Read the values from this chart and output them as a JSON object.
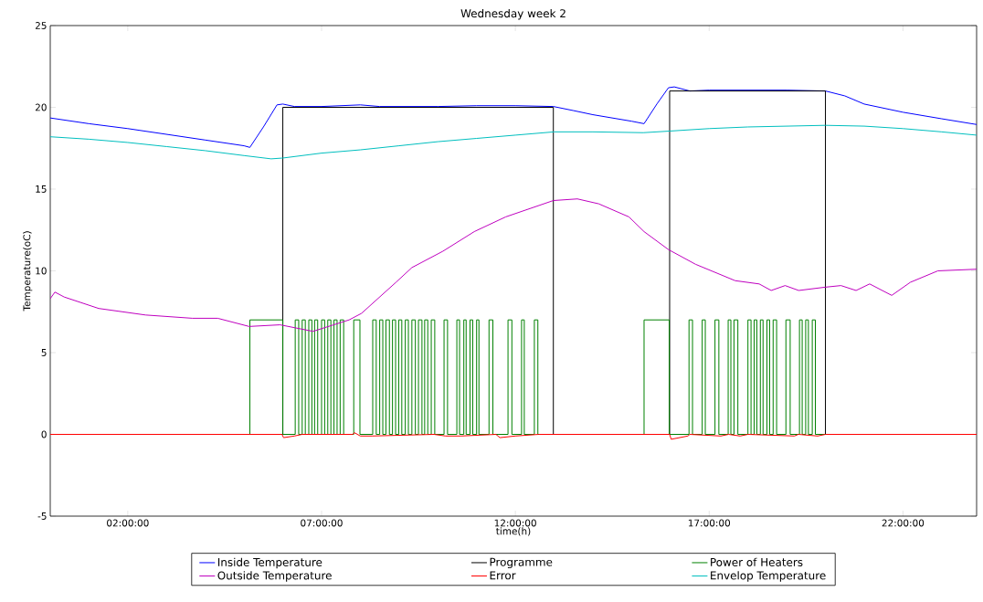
{
  "chart_data": {
    "type": "line",
    "title": "Wednesday week 2",
    "xlabel": "time(h)",
    "ylabel": "Temperature(oC)",
    "xlim": [
      0,
      23.9
    ],
    "ylim": [
      -5,
      25
    ],
    "xticks": [
      {
        "value": 2,
        "label": "02:00:00"
      },
      {
        "value": 7,
        "label": "07:00:00"
      },
      {
        "value": 12,
        "label": "12:00:00"
      },
      {
        "value": 17,
        "label": "17:00:00"
      },
      {
        "value": 22,
        "label": "22:00:00"
      }
    ],
    "yticks": [
      -5,
      0,
      5,
      10,
      15,
      20,
      25
    ],
    "grid": false,
    "legend": "bottom",
    "series": [
      {
        "name": "Inside Temperature",
        "color": "#0000ff",
        "x": [
          0,
          1,
          2,
          3,
          4,
          5,
          5.15,
          5.5,
          5.85,
          6.0,
          6.3,
          7,
          8,
          8.5,
          10,
          11,
          12,
          12.98,
          13.5,
          14,
          15,
          15.32,
          15.65,
          15.95,
          16.1,
          16.5,
          17,
          18,
          19,
          20,
          20.5,
          21,
          22,
          23,
          23.9
        ],
        "values": [
          19.35,
          19.0,
          18.7,
          18.35,
          18.0,
          17.65,
          17.55,
          18.8,
          20.15,
          20.2,
          20.05,
          20.05,
          20.15,
          20.05,
          20.05,
          20.1,
          20.1,
          20.05,
          19.8,
          19.55,
          19.15,
          19.0,
          20.2,
          21.2,
          21.25,
          21.0,
          21.05,
          21.05,
          21.05,
          21.0,
          20.7,
          20.2,
          19.7,
          19.3,
          18.95
        ]
      },
      {
        "name": "Outside Temperature",
        "color": "#bf00bf",
        "x": [
          0,
          0.12,
          0.36,
          1.25,
          2.46,
          3.67,
          4.32,
          5.13,
          5.93,
          6.78,
          7.71,
          8.03,
          8.92,
          9.33,
          10.13,
          10.94,
          11.75,
          12.98,
          13.6,
          14.15,
          14.93,
          15.32,
          15.95,
          16.65,
          17.67,
          18.29,
          18.6,
          18.96,
          19.31,
          19.99,
          20.4,
          20.79,
          21.14,
          21.71,
          22.19,
          22.9,
          23.9
        ],
        "values": [
          8.3,
          8.7,
          8.4,
          7.7,
          7.3,
          7.1,
          7.1,
          6.6,
          6.7,
          6.3,
          7.0,
          7.4,
          9.3,
          10.2,
          11.2,
          12.4,
          13.3,
          14.3,
          14.4,
          14.1,
          13.3,
          12.4,
          11.3,
          10.4,
          9.4,
          9.2,
          8.8,
          9.1,
          8.8,
          9.0,
          9.1,
          8.8,
          9.2,
          8.5,
          9.3,
          10.0,
          10.1
        ]
      },
      {
        "name": "Programme",
        "type": "step",
        "color": "#000000",
        "x": [
          0,
          6.0,
          12.98,
          15.98,
          20.0,
          23.9
        ],
        "values": [
          0,
          20,
          0,
          21,
          0,
          0
        ]
      },
      {
        "name": "Error",
        "color": "#ff0000",
        "x": [
          0,
          5.98,
          6.02,
          6.3,
          6.5,
          7.8,
          7.85,
          8.0,
          8.3,
          9.9,
          10.2,
          10.6,
          11.5,
          11.6,
          12.0,
          12.6,
          12.98,
          15.98,
          16.02,
          16.45,
          16.5,
          17.3,
          17.5,
          17.8,
          18.0,
          19.2,
          19.3,
          19.8,
          20.0,
          23.9
        ],
        "values": [
          0,
          0,
          -0.2,
          -0.1,
          0,
          0,
          0.1,
          -0.1,
          -0.1,
          0,
          -0.1,
          -0.1,
          0,
          -0.2,
          -0.1,
          0,
          0,
          0,
          -0.3,
          -0.1,
          0,
          -0.1,
          0,
          -0.1,
          0,
          -0.1,
          0,
          -0.1,
          0,
          0
        ]
      },
      {
        "name": "Power of Heaters",
        "type": "step",
        "color": "#008000",
        "x": [
          0,
          5.15,
          6.0,
          6.32,
          6.41,
          6.5,
          6.58,
          6.67,
          6.75,
          6.82,
          6.9,
          7.0,
          7.08,
          7.16,
          7.24,
          7.32,
          7.4,
          7.48,
          7.57,
          7.83,
          7.99,
          8.32,
          8.41,
          8.5,
          8.58,
          8.66,
          8.75,
          8.83,
          8.91,
          8.99,
          9.07,
          9.16,
          9.24,
          9.33,
          9.42,
          9.5,
          9.59,
          9.66,
          9.74,
          9.83,
          9.92,
          10.16,
          10.25,
          10.49,
          10.56,
          10.67,
          10.73,
          10.83,
          10.9,
          11.0,
          11.06,
          11.32,
          11.42,
          11.81,
          11.91,
          12.16,
          12.23,
          12.49,
          12.58,
          15.32,
          15.97,
          16.48,
          16.57,
          16.82,
          16.9,
          17.15,
          17.25,
          17.49,
          17.56,
          17.64,
          17.74,
          18.0,
          18.08,
          18.16,
          18.23,
          18.32,
          18.39,
          18.49,
          18.56,
          18.65,
          18.74,
          18.98,
          19.09,
          19.33,
          19.4,
          19.49,
          19.56,
          19.66,
          19.74,
          23.9
        ],
        "values": [
          0,
          7,
          0,
          7,
          0,
          7,
          0,
          7,
          0,
          7,
          0,
          7,
          0,
          7,
          0,
          7,
          0,
          7,
          0,
          7,
          0,
          7,
          0,
          7,
          0,
          7,
          0,
          7,
          0,
          7,
          0,
          7,
          0,
          7,
          0,
          7,
          0,
          7,
          0,
          7,
          0,
          7,
          0,
          7,
          0,
          7,
          0,
          7,
          0,
          7,
          0,
          7,
          0,
          7,
          0,
          7,
          0,
          7,
          0,
          7,
          0,
          7,
          0,
          7,
          0,
          7,
          0,
          7,
          0,
          7,
          0,
          7,
          0,
          7,
          0,
          7,
          0,
          7,
          0,
          7,
          0,
          7,
          0,
          7,
          0,
          7,
          0,
          7,
          0,
          0
        ]
      },
      {
        "name": "Envelop Temperature",
        "color": "#00bfbf",
        "x": [
          0,
          1,
          2,
          3,
          4,
          5,
          5.7,
          6.0,
          7,
          8,
          9,
          10,
          11,
          12,
          13,
          14,
          15.3,
          16,
          17,
          18,
          19,
          20,
          21,
          22,
          23,
          23.9
        ],
        "values": [
          18.2,
          18.05,
          17.85,
          17.6,
          17.35,
          17.05,
          16.85,
          16.9,
          17.2,
          17.4,
          17.65,
          17.9,
          18.1,
          18.3,
          18.5,
          18.5,
          18.45,
          18.55,
          18.7,
          18.8,
          18.85,
          18.9,
          18.85,
          18.7,
          18.5,
          18.3
        ]
      }
    ]
  }
}
